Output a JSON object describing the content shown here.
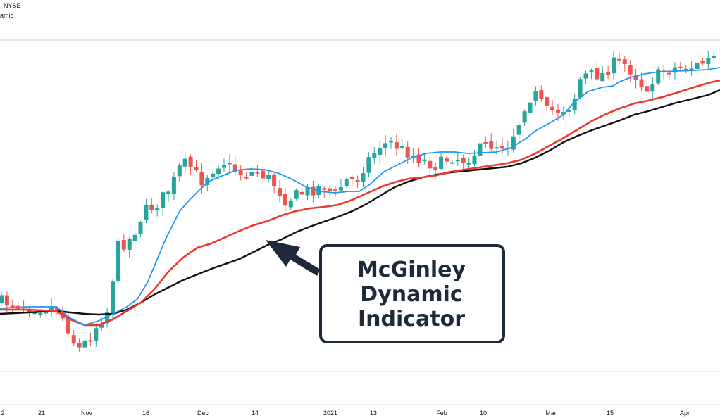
{
  "header": {
    "line1": ", NYSE",
    "line2": "amic"
  },
  "callout": {
    "lines": [
      "McGinley",
      "Dynamic",
      "Indicator"
    ]
  },
  "colors": {
    "up_candle": "#26a69a",
    "down_candle": "#ef5350",
    "blue_line": "#2196f3",
    "red_line": "#f0362f",
    "black_line": "#111111",
    "callout_border": "#1e2a3a"
  },
  "chart_data": {
    "type": "candlestick",
    "title": "",
    "xlabel": "",
    "ylabel": "",
    "x_ticks": [
      "2",
      "21",
      "Nov",
      "16",
      "Dec",
      "14",
      "2021",
      "13",
      "Feb",
      "10",
      "Mar",
      "15",
      "Apr"
    ],
    "grid": false,
    "series": [
      {
        "name": "McGinley Dynamic Indicator"
      }
    ]
  }
}
